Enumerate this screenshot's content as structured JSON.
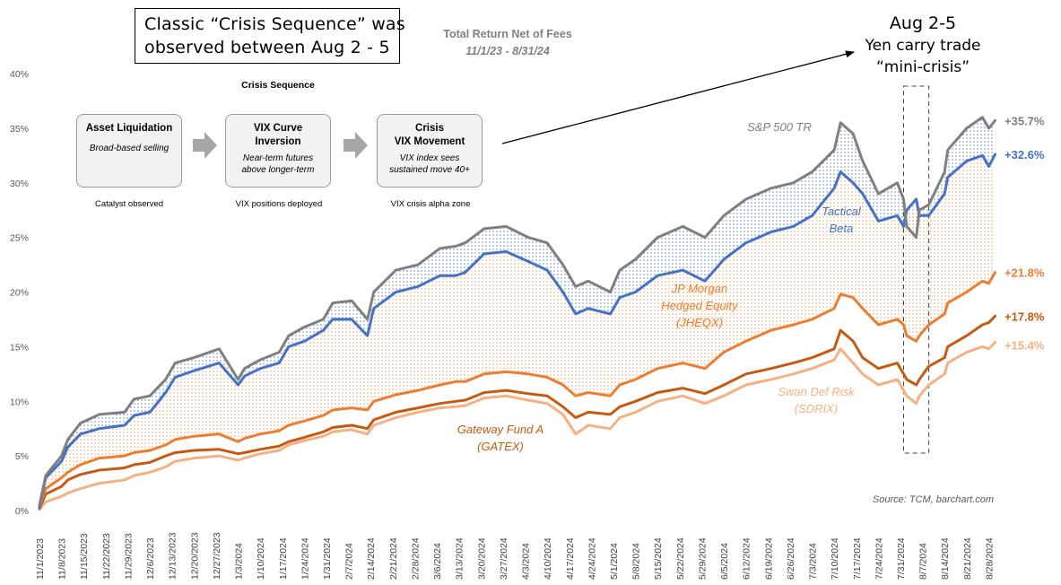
{
  "callout": {
    "line1": "Classic  “Crisis  Sequence”  was",
    "line2": "observed between Aug 2 - 5"
  },
  "crisis_sequence": {
    "title": "Crisis Sequence",
    "steps": [
      {
        "title1": "Asset Liquidation",
        "title2": "",
        "sub1": "Broad-based selling",
        "sub2": "",
        "caption": "Catalyst observed"
      },
      {
        "title1": "VIX Curve",
        "title2": "Inversion",
        "sub1": "Near-term futures",
        "sub2": "above longer-term",
        "caption": "VIX positions deployed"
      },
      {
        "title1": "Crisis",
        "title2": "VIX Movement",
        "sub1": "VIX index sees",
        "sub2": "sustained move 40+",
        "caption": "VIX crisis alpha zone"
      }
    ]
  },
  "aug_annotation": {
    "line1": "Aug 2-5",
    "line2": "Yen carry trade",
    "line3": "“mini-crisis”"
  },
  "colors": {
    "sp500": "#7f7f7f",
    "tactical": "#4472c4",
    "jheqx": "#ed7d31",
    "gatex": "#c55a11",
    "sdrix": "#f4b183",
    "blue_dots": "#2e5597",
    "orange_dots": "#ed7d31"
  },
  "chart_data": {
    "type": "line",
    "title": "Total Return Net of Fees",
    "subtitle": "11/1/23 - 8/31/24",
    "source": "Source: TCM, barchart.com",
    "ylim": [
      0,
      40
    ],
    "yticks": [
      "0%",
      "5%",
      "10%",
      "15%",
      "20%",
      "25%",
      "30%",
      "35%",
      "40%"
    ],
    "xlim": [
      "11/1/2023",
      "8/31/2024"
    ],
    "x_tick_labels": [
      "11/1/2023",
      "11/8/2023",
      "11/15/2023",
      "11/22/2023",
      "11/29/2023",
      "12/6/2023",
      "12/13/2023",
      "12/20/2023",
      "12/27/2023",
      "1/3/2024",
      "1/10/2024",
      "1/17/2024",
      "1/24/2024",
      "1/31/2024",
      "2/7/2024",
      "2/14/2024",
      "2/21/2024",
      "2/28/2024",
      "3/6/2024",
      "3/13/2024",
      "3/20/2024",
      "3/27/2024",
      "4/3/2024",
      "4/10/2024",
      "4/17/2024",
      "4/24/2024",
      "5/1/2024",
      "5/8/2024",
      "5/15/2024",
      "5/22/2024",
      "5/29/2024",
      "6/5/2024",
      "6/12/2024",
      "6/19/2024",
      "6/26/2024",
      "7/3/2024",
      "7/10/2024",
      "7/17/2024",
      "7/24/2024",
      "7/31/2024",
      "8/7/2024",
      "8/14/2024",
      "8/21/2024",
      "8/28/2024"
    ],
    "x": [
      "11/1/2023",
      "11/3/2023",
      "11/8/2023",
      "11/10/2023",
      "11/14/2023",
      "11/20/2023",
      "11/28/2023",
      "12/1/2023",
      "12/6/2023",
      "12/11/2023",
      "12/14/2023",
      "12/20/2023",
      "12/28/2023",
      "1/3/2024",
      "1/5/2024",
      "1/10/2024",
      "1/16/2024",
      "1/19/2024",
      "1/24/2024",
      "1/30/2024",
      "2/2/2024",
      "2/8/2024",
      "2/13/2024",
      "2/15/2024",
      "2/22/2024",
      "2/29/2024",
      "3/7/2024",
      "3/12/2024",
      "3/15/2024",
      "3/21/2024",
      "3/28/2024",
      "4/4/2024",
      "4/10/2024",
      "4/15/2024",
      "4/19/2024",
      "4/23/2024",
      "4/30/2024",
      "5/3/2024",
      "5/8/2024",
      "5/15/2024",
      "5/23/2024",
      "5/30/2024",
      "6/5/2024",
      "6/12/2024",
      "6/20/2024",
      "6/27/2024",
      "7/3/2024",
      "7/10/2024",
      "7/12/2024",
      "7/16/2024",
      "7/19/2024",
      "7/24/2024",
      "7/30/2024",
      "8/1/2024",
      "8/2/2024",
      "8/5/2024",
      "8/6/2024",
      "8/9/2024",
      "8/14/2024",
      "8/15/2024",
      "8/21/2024",
      "8/26/2024",
      "8/28/2024",
      "8/30/2024"
    ],
    "series": [
      {
        "name": "S&P 500 TR",
        "end_label": "+35.7%",
        "values": [
          0.5,
          3.2,
          5.0,
          6.5,
          8.0,
          8.8,
          9.0,
          10.2,
          10.5,
          12.0,
          13.5,
          14.0,
          14.8,
          12.0,
          13.0,
          13.8,
          14.5,
          16.0,
          16.8,
          17.5,
          19.0,
          19.2,
          17.5,
          20.0,
          22.0,
          22.5,
          24.0,
          24.2,
          24.5,
          25.8,
          26.0,
          25.0,
          24.5,
          22.5,
          20.5,
          21.0,
          20.0,
          22.0,
          23.0,
          25.0,
          26.0,
          25.0,
          27.0,
          28.5,
          29.5,
          30.0,
          31.0,
          33.0,
          35.5,
          34.5,
          32.0,
          29.0,
          30.0,
          28.5,
          26.0,
          25.0,
          27.5,
          28.0,
          31.0,
          33.0,
          35.0,
          36.0,
          35.0,
          35.7
        ]
      },
      {
        "name": "Tactical Beta",
        "end_label": "+32.6%",
        "values": [
          0.3,
          3.0,
          4.5,
          5.8,
          7.0,
          7.5,
          7.8,
          8.7,
          9.0,
          10.8,
          12.2,
          12.8,
          13.5,
          11.5,
          12.3,
          13.0,
          13.5,
          15.0,
          15.5,
          16.5,
          17.5,
          17.5,
          16.0,
          18.5,
          20.0,
          20.5,
          21.5,
          21.5,
          21.8,
          23.5,
          23.7,
          22.8,
          22.0,
          20.0,
          18.0,
          18.5,
          18.0,
          19.5,
          20.0,
          21.5,
          22.0,
          21.0,
          23.0,
          24.5,
          25.5,
          26.0,
          27.0,
          29.5,
          31.0,
          30.0,
          29.0,
          26.5,
          27.0,
          26.0,
          27.5,
          28.5,
          27.0,
          27.0,
          29.0,
          30.5,
          32.0,
          32.5,
          31.5,
          32.6
        ]
      },
      {
        "name": "JP Morgan Hedged Equity (JHEQX)",
        "end_label": "+21.8%",
        "values": [
          0.3,
          2.0,
          3.0,
          3.5,
          4.2,
          4.8,
          5.0,
          5.3,
          5.5,
          6.0,
          6.5,
          6.8,
          7.0,
          6.3,
          6.6,
          7.0,
          7.3,
          7.8,
          8.2,
          8.7,
          9.2,
          9.4,
          9.2,
          10.0,
          10.6,
          11.0,
          11.5,
          11.8,
          11.8,
          12.5,
          12.7,
          12.5,
          12.2,
          11.5,
          10.5,
          10.8,
          10.5,
          11.5,
          12.0,
          13.0,
          13.5,
          13.0,
          14.5,
          15.5,
          16.5,
          17.0,
          17.5,
          18.5,
          19.8,
          19.5,
          18.5,
          17.0,
          17.5,
          17.0,
          16.0,
          15.5,
          16.0,
          17.0,
          18.0,
          19.0,
          20.0,
          21.0,
          20.8,
          21.8
        ]
      },
      {
        "name": "Gateway Fund A (GATEX)",
        "end_label": "+17.8%",
        "values": [
          0.2,
          1.5,
          2.2,
          2.8,
          3.3,
          3.7,
          3.9,
          4.2,
          4.4,
          5.0,
          5.3,
          5.5,
          5.6,
          5.2,
          5.3,
          5.6,
          5.9,
          6.3,
          6.7,
          7.2,
          7.6,
          7.8,
          7.5,
          8.3,
          9.0,
          9.4,
          9.8,
          10.0,
          10.1,
          10.8,
          11.0,
          10.7,
          10.5,
          9.5,
          8.5,
          9.0,
          8.8,
          9.5,
          10.0,
          10.8,
          11.2,
          10.7,
          11.5,
          12.5,
          13.0,
          13.5,
          14.0,
          14.8,
          16.5,
          15.5,
          14.0,
          13.0,
          13.5,
          12.5,
          12.0,
          11.5,
          12.0,
          13.2,
          14.0,
          15.0,
          16.0,
          17.0,
          17.2,
          17.8
        ]
      },
      {
        "name": "Swan Def Risk (SDRIX)",
        "end_label": "+15.4%",
        "values": [
          0.1,
          0.8,
          1.3,
          1.6,
          2.0,
          2.5,
          2.8,
          3.2,
          3.5,
          4.0,
          4.5,
          4.8,
          5.0,
          4.6,
          4.8,
          5.2,
          5.5,
          6.0,
          6.4,
          6.8,
          7.2,
          7.4,
          7.0,
          7.8,
          8.5,
          9.0,
          9.4,
          9.5,
          9.6,
          10.3,
          10.5,
          10.1,
          9.8,
          8.8,
          7.0,
          7.8,
          7.5,
          8.5,
          9.0,
          10.0,
          10.5,
          9.8,
          10.5,
          11.5,
          12.0,
          12.5,
          13.0,
          13.8,
          14.8,
          13.5,
          12.5,
          11.5,
          12.0,
          11.0,
          10.5,
          9.8,
          10.5,
          11.5,
          12.5,
          13.5,
          14.5,
          15.0,
          14.8,
          15.4
        ]
      }
    ],
    "series_labels": [
      {
        "line1": "S&P 500 TR",
        "line2": "",
        "line3": ""
      },
      {
        "line1": "Tactical",
        "line2": "Beta",
        "line3": ""
      },
      {
        "line1": "JP Morgan",
        "line2": "Hedged Equity",
        "line3": "(JHEQX)"
      },
      {
        "line1": "Gateway Fund A",
        "line2": "(GATEX)",
        "line3": ""
      },
      {
        "line1": "Swan Def Risk",
        "line2": "(SDRIX)",
        "line3": ""
      }
    ],
    "highlight_window": {
      "from": "8/1/2024",
      "to": "8/9/2024"
    }
  }
}
